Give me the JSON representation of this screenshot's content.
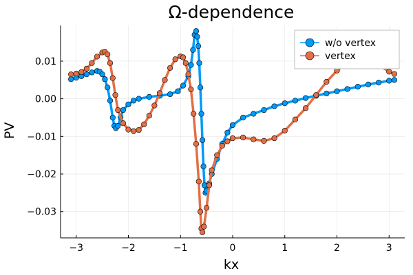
{
  "chart_data": {
    "type": "line",
    "title": "Ω-dependence",
    "xlabel": "kx",
    "ylabel": "PV",
    "xlim": [
      -3.3,
      3.3
    ],
    "ylim": [
      -0.037,
      0.0195
    ],
    "xticks": [
      -3,
      -2,
      -1,
      0,
      1,
      2,
      3
    ],
    "xtick_labels": [
      "−3",
      "−2",
      "−1",
      "0",
      "1",
      "2",
      "3"
    ],
    "yticks": [
      -0.03,
      -0.02,
      -0.01,
      0.0,
      0.01
    ],
    "ytick_labels": [
      "−0.03",
      "−0.02",
      "−0.01",
      "0.00",
      "0.01"
    ],
    "grid": true,
    "legend_position": "top-right",
    "marker": "circle",
    "series": [
      {
        "name": "w/o vertex",
        "color": "#009af9",
        "points": [
          [
            -3.1,
            0.0052
          ],
          [
            -3.0,
            0.0056
          ],
          [
            -2.9,
            0.006
          ],
          [
            -2.8,
            0.0065
          ],
          [
            -2.7,
            0.007
          ],
          [
            -2.6,
            0.0074
          ],
          [
            -2.55,
            0.0072
          ],
          [
            -2.5,
            0.0065
          ],
          [
            -2.45,
            0.0052
          ],
          [
            -2.4,
            0.003
          ],
          [
            -2.35,
            -0.0005
          ],
          [
            -2.3,
            -0.005
          ],
          [
            -2.27,
            -0.0072
          ],
          [
            -2.24,
            -0.0078
          ],
          [
            -2.2,
            -0.0072
          ],
          [
            -2.15,
            -0.005
          ],
          [
            -2.1,
            -0.003
          ],
          [
            -2.0,
            -0.0015
          ],
          [
            -1.9,
            -0.0005
          ],
          [
            -1.8,
            0.0
          ],
          [
            -1.6,
            0.0005
          ],
          [
            -1.4,
            0.0008
          ],
          [
            -1.2,
            0.0012
          ],
          [
            -1.05,
            0.002
          ],
          [
            -0.95,
            0.0035
          ],
          [
            -0.85,
            0.006
          ],
          [
            -0.8,
            0.009
          ],
          [
            -0.76,
            0.013
          ],
          [
            -0.73,
            0.017
          ],
          [
            -0.7,
            0.018
          ],
          [
            -0.68,
            0.0165
          ],
          [
            -0.66,
            0.014
          ],
          [
            -0.64,
            0.0095
          ],
          [
            -0.62,
            0.003
          ],
          [
            -0.6,
            -0.004
          ],
          [
            -0.58,
            -0.011
          ],
          [
            -0.56,
            -0.018
          ],
          [
            -0.54,
            -0.023
          ],
          [
            -0.52,
            -0.025
          ],
          [
            -0.5,
            -0.0245
          ],
          [
            -0.45,
            -0.0225
          ],
          [
            -0.4,
            -0.02
          ],
          [
            -0.3,
            -0.016
          ],
          [
            -0.2,
            -0.012
          ],
          [
            -0.1,
            -0.009
          ],
          [
            0.0,
            -0.007
          ],
          [
            0.2,
            -0.005
          ],
          [
            0.4,
            -0.004
          ],
          [
            0.6,
            -0.003
          ],
          [
            0.8,
            -0.002
          ],
          [
            1.0,
            -0.0012
          ],
          [
            1.2,
            -0.0005
          ],
          [
            1.4,
            0.0002
          ],
          [
            1.6,
            0.0008
          ],
          [
            1.8,
            0.0014
          ],
          [
            2.0,
            0.002
          ],
          [
            2.2,
            0.0026
          ],
          [
            2.4,
            0.0032
          ],
          [
            2.6,
            0.0038
          ],
          [
            2.8,
            0.0043
          ],
          [
            3.0,
            0.0048
          ],
          [
            3.1,
            0.005
          ]
        ]
      },
      {
        "name": "vertex",
        "color": "#e26f46",
        "points": [
          [
            -3.1,
            0.0065
          ],
          [
            -3.0,
            0.0067
          ],
          [
            -2.9,
            0.0071
          ],
          [
            -2.8,
            0.008
          ],
          [
            -2.7,
            0.0095
          ],
          [
            -2.6,
            0.0112
          ],
          [
            -2.5,
            0.0123
          ],
          [
            -2.45,
            0.0125
          ],
          [
            -2.4,
            0.0118
          ],
          [
            -2.35,
            0.0095
          ],
          [
            -2.3,
            0.0055
          ],
          [
            -2.25,
            0.001
          ],
          [
            -2.2,
            -0.003
          ],
          [
            -2.1,
            -0.0065
          ],
          [
            -2.0,
            -0.0082
          ],
          [
            -1.9,
            -0.0086
          ],
          [
            -1.8,
            -0.0083
          ],
          [
            -1.7,
            -0.0068
          ],
          [
            -1.6,
            -0.0045
          ],
          [
            -1.5,
            -0.0018
          ],
          [
            -1.4,
            0.0015
          ],
          [
            -1.3,
            0.005
          ],
          [
            -1.2,
            0.0082
          ],
          [
            -1.1,
            0.0105
          ],
          [
            -1.0,
            0.0113
          ],
          [
            -0.95,
            0.011
          ],
          [
            -0.9,
            0.0095
          ],
          [
            -0.85,
            0.0065
          ],
          [
            -0.8,
            0.0025
          ],
          [
            -0.75,
            -0.004
          ],
          [
            -0.7,
            -0.012
          ],
          [
            -0.65,
            -0.022
          ],
          [
            -0.62,
            -0.03
          ],
          [
            -0.6,
            -0.0345
          ],
          [
            -0.58,
            -0.0355
          ],
          [
            -0.55,
            -0.034
          ],
          [
            -0.5,
            -0.029
          ],
          [
            -0.45,
            -0.023
          ],
          [
            -0.4,
            -0.019
          ],
          [
            -0.3,
            -0.015
          ],
          [
            -0.2,
            -0.0125
          ],
          [
            -0.1,
            -0.0113
          ],
          [
            0.0,
            -0.0105
          ],
          [
            0.2,
            -0.0103
          ],
          [
            0.4,
            -0.0108
          ],
          [
            0.6,
            -0.0112
          ],
          [
            0.8,
            -0.0105
          ],
          [
            1.0,
            -0.0085
          ],
          [
            1.2,
            -0.0055
          ],
          [
            1.4,
            -0.0025
          ],
          [
            1.6,
            0.001
          ],
          [
            1.8,
            0.0045
          ],
          [
            2.0,
            0.0075
          ],
          [
            2.2,
            0.0095
          ],
          [
            2.4,
            0.0105
          ],
          [
            2.6,
            0.0103
          ],
          [
            2.8,
            0.009
          ],
          [
            3.0,
            0.0072
          ],
          [
            3.1,
            0.0066
          ]
        ]
      }
    ]
  }
}
